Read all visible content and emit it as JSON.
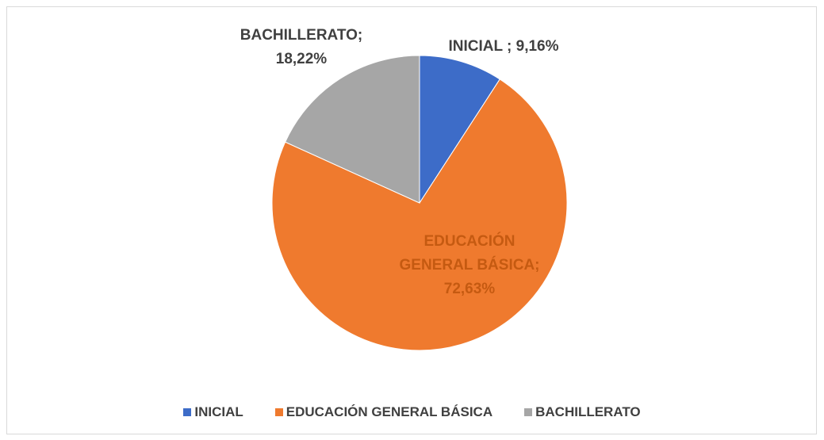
{
  "chart_data": {
    "type": "pie",
    "categories": [
      "INICIAL",
      "EDUCACIÓN GENERAL BÁSICA",
      "BACHILLERATO"
    ],
    "values": [
      9.16,
      72.63,
      18.22
    ],
    "value_labels": [
      "INICIAL ; 9,16%",
      "EDUCACIÓN GENERAL BÁSICA; 72,63%",
      "BACHILLERATO; 18,22%"
    ],
    "colors": [
      "#3d6cc8",
      "#ef7a2e",
      "#a6a6a6"
    ],
    "legend": "bottom"
  }
}
